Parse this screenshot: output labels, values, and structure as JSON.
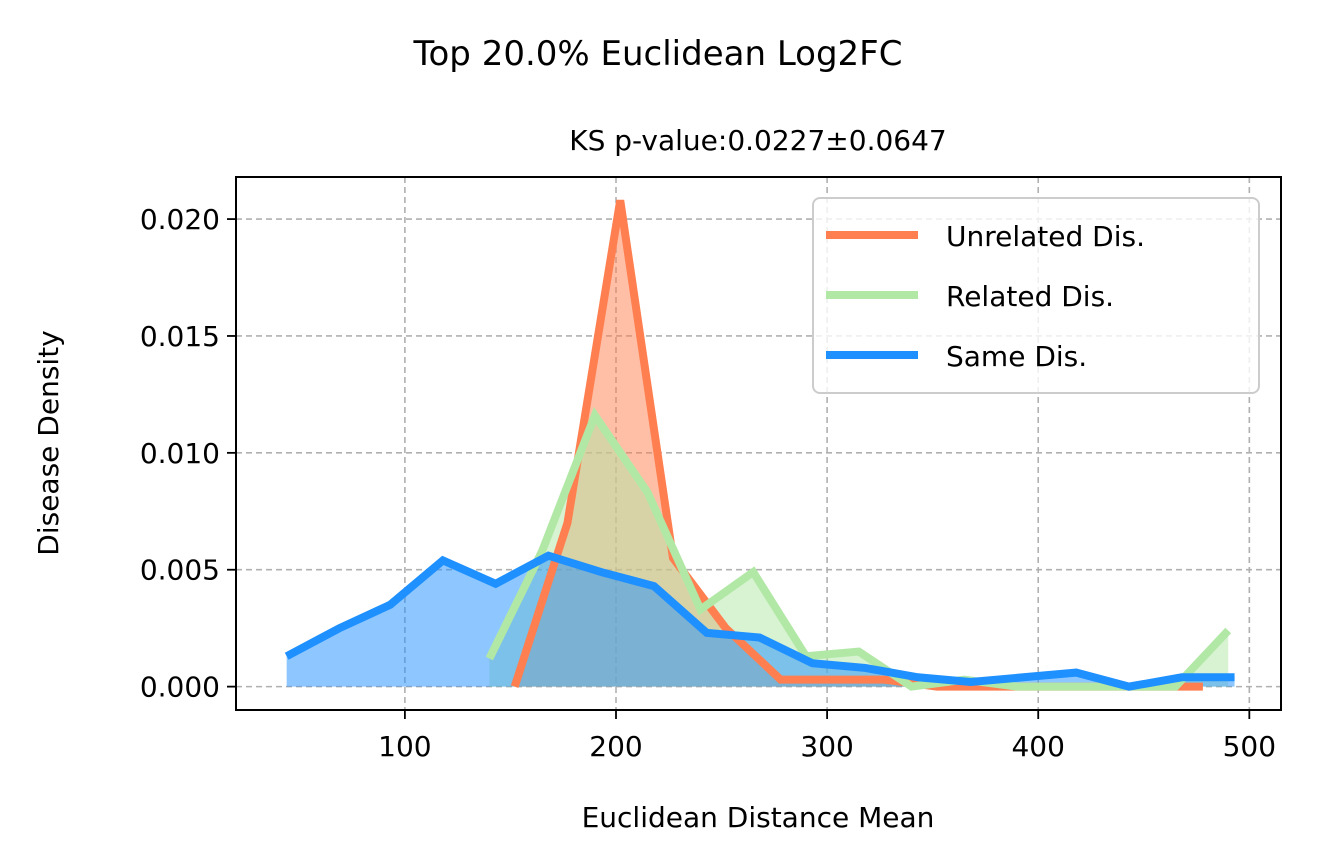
{
  "chart_data": {
    "type": "line",
    "title": "Top 20.0% Euclidean Log2FC",
    "subtitle": "KS p-value:0.0227±0.0647",
    "xlabel": "Euclidean Distance Mean",
    "ylabel": "Disease Density",
    "xlim": [
      20,
      515
    ],
    "ylim": [
      -0.001,
      0.0218
    ],
    "xticks": [
      100,
      200,
      300,
      400,
      500
    ],
    "xtick_labels": [
      "100",
      "200",
      "300",
      "400",
      "500"
    ],
    "yticks": [
      0.0,
      0.005,
      0.01,
      0.015,
      0.02
    ],
    "ytick_labels": [
      "0.000",
      "0.005",
      "0.010",
      "0.015",
      "0.020"
    ],
    "grid": true,
    "legend_position": "top-right",
    "filled": true,
    "series": [
      {
        "name": "Unrelated Dis.",
        "color": "#FF7F50",
        "x": [
          152,
          177,
          202,
          227,
          252,
          278,
          302,
          327,
          352,
          377,
          402,
          428,
          452,
          478
        ],
        "y": [
          0.0,
          0.007,
          0.0208,
          0.0055,
          0.0025,
          0.0003,
          0.0003,
          0.0003,
          0.0,
          0.0,
          0.0,
          0.0,
          0.0,
          0.0
        ]
      },
      {
        "name": "Related Dis.",
        "color": "#B2E8A6",
        "x": [
          140,
          165,
          190,
          215,
          240,
          265,
          290,
          315,
          340,
          365,
          390,
          415,
          440,
          465,
          490
        ],
        "y": [
          0.0012,
          0.0058,
          0.0116,
          0.0083,
          0.0033,
          0.0049,
          0.0013,
          0.0015,
          0.0,
          0.0003,
          0.0,
          0.0,
          0.0,
          0.0,
          0.0024
        ]
      },
      {
        "name": "Same Dis.",
        "color": "#1E90FF",
        "x": [
          44,
          69,
          93,
          118,
          143,
          168,
          193,
          218,
          243,
          268,
          293,
          318,
          343,
          368,
          393,
          418,
          443,
          468,
          493
        ],
        "y": [
          0.0013,
          0.0025,
          0.0035,
          0.0054,
          0.0044,
          0.0056,
          0.0049,
          0.0043,
          0.0023,
          0.0021,
          0.001,
          0.0008,
          0.0004,
          0.0002,
          0.0004,
          0.0006,
          0.0,
          0.0004,
          0.0004
        ]
      }
    ]
  }
}
